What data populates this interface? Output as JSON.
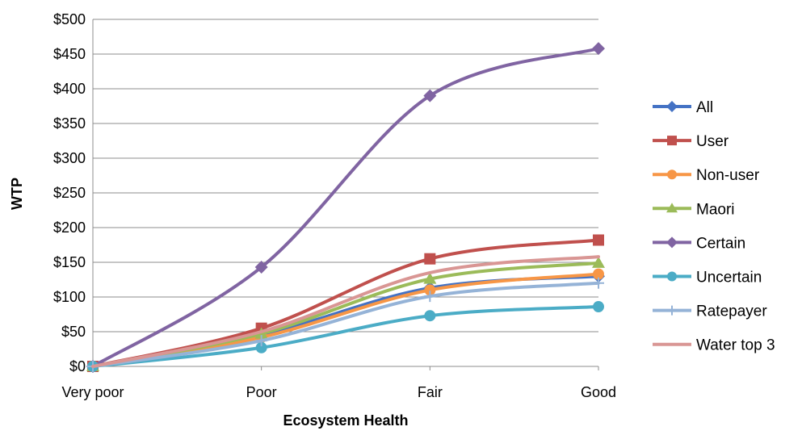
{
  "chart_data": {
    "type": "line",
    "xlabel": "Ecosystem  Health",
    "ylabel": "WTP",
    "categories": [
      "Very poor",
      "Poor",
      "Fair",
      "Good"
    ],
    "ylim": [
      0,
      500
    ],
    "ytick_step": 50,
    "ytick_labels": [
      "$0",
      "$50",
      "$100",
      "$150",
      "$200",
      "$250",
      "$300",
      "$350",
      "$400",
      "$450",
      "$500"
    ],
    "grid": "horizontal",
    "legend_position": "right",
    "smoothed": true,
    "series": [
      {
        "name": "All",
        "color": "#4472C4",
        "marker": "diamond",
        "values": [
          0,
          45,
          113,
          130
        ]
      },
      {
        "name": "User",
        "color": "#C0504D",
        "marker": "square",
        "values": [
          0,
          55,
          155,
          182
        ]
      },
      {
        "name": "Non-user",
        "color": "#F79646",
        "marker": "circle",
        "values": [
          0,
          42,
          110,
          133
        ]
      },
      {
        "name": "Maori",
        "color": "#9BBB59",
        "marker": "triangle",
        "values": [
          0,
          47,
          126,
          149
        ]
      },
      {
        "name": "Certain",
        "color": "#8064A2",
        "marker": "diamond",
        "values": [
          0,
          143,
          390,
          458
        ]
      },
      {
        "name": "Uncertain",
        "color": "#4BACC6",
        "marker": "circle",
        "values": [
          0,
          27,
          73,
          86
        ]
      },
      {
        "name": "Ratepayer",
        "color": "#95B3D7",
        "marker": "plus",
        "values": [
          0,
          37,
          101,
          120
        ]
      },
      {
        "name": "Water top 3",
        "color": "#D99694",
        "marker": "none",
        "values": [
          0,
          50,
          135,
          158
        ]
      }
    ]
  }
}
